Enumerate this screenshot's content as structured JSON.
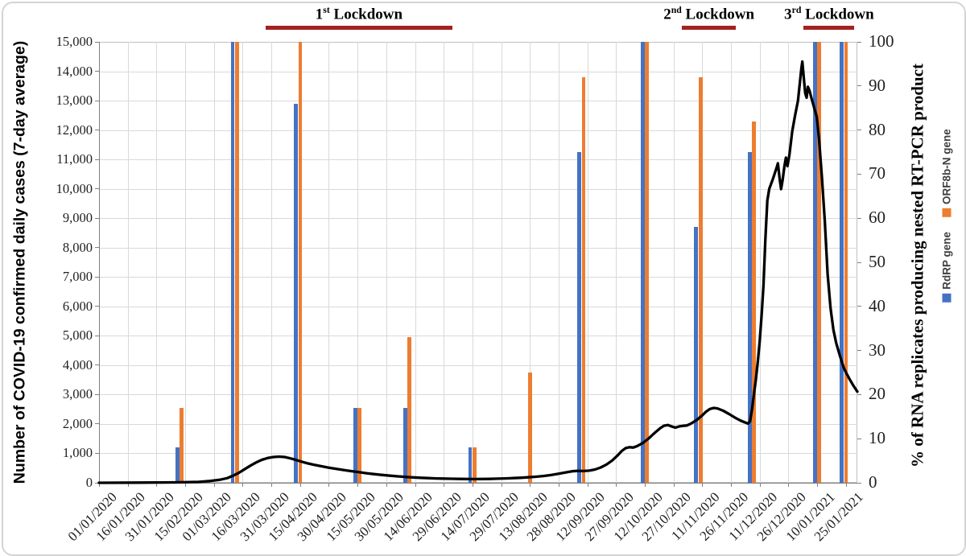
{
  "figure": {
    "left_axis": {
      "title": "Number of COVID-19 confirmed daily cases (7-day average)",
      "min": 0,
      "max": 15000,
      "step": 1000,
      "tick_labels": [
        "0",
        "1,000",
        "2,000",
        "3,000",
        "4,000",
        "5,000",
        "6,000",
        "7,000",
        "8,000",
        "9,000",
        "10,000",
        "11,000",
        "12,000",
        "13,000",
        "14,000",
        "15,000"
      ]
    },
    "right_axis": {
      "title": "% of RNA replicates producing nested RT-PCR product",
      "min": 0,
      "max": 100,
      "step": 10,
      "tick_labels": [
        "0",
        "10",
        "20",
        "30",
        "40",
        "50",
        "60",
        "70",
        "80",
        "90",
        "100"
      ]
    },
    "x_axis": {
      "labels": [
        "01/01/2020",
        "16/01/2020",
        "31/01/2020",
        "15/02/2020",
        "01/03/2020",
        "16/03/2020",
        "31/03/2020",
        "15/04/2020",
        "30/04/2020",
        "15/05/2020",
        "30/05/2020",
        "14/06/2020",
        "29/06/2020",
        "14/07/2020",
        "29/07/2020",
        "13/08/2020",
        "28/08/2020",
        "12/09/2020",
        "27/09/2020",
        "12/10/2020",
        "27/10/2020",
        "11/11/2020",
        "26/11/2020",
        "11/12/2020",
        "26/12/2020",
        "10/01/2021",
        "25/01/2021"
      ],
      "label_interval_days": 15,
      "total_days_shown": 396
    },
    "legend": {
      "items": [
        {
          "label": "RdRP gene",
          "color": "#4472C4"
        },
        {
          "label": "ORF8b-N gene",
          "color": "#ED7D31"
        }
      ]
    },
    "lockdowns": [
      {
        "ordinal": "1",
        "suffix": "st",
        "word": "Lockdown",
        "day_start": 87,
        "day_end": 184.5,
        "approx_period": "28/03/2020 - 03/07/2020"
      },
      {
        "ordinal": "2",
        "suffix": "nd",
        "word": "Lockdown",
        "day_start": 304.5,
        "day_end": 332.5,
        "approx_period": "31/10/2020 - 28/11/2020"
      },
      {
        "ordinal": "3",
        "suffix": "rd",
        "word": "Lockdown",
        "day_start": 368,
        "day_end": 394.5,
        "approx_period": "03/01/2021 - end of chart"
      }
    ],
    "colors": {
      "rdrp_blue": "#4472C4",
      "orf8b_orange": "#ED7D31",
      "case_line_black": "#000000",
      "lockdown_red": "#A52121",
      "grid": "#D9D9D9",
      "plot_border": "#BFBFBF",
      "axis": "#808080"
    }
  },
  "chart_data": {
    "type": "combo (clustered bars + line, dual y-axes)",
    "title": "",
    "xlabel": "",
    "x_axis_labels": [
      "01/01/2020",
      "16/01/2020",
      "31/01/2020",
      "15/02/2020",
      "01/03/2020",
      "16/03/2020",
      "31/03/2020",
      "15/04/2020",
      "30/04/2020",
      "15/05/2020",
      "30/05/2020",
      "14/06/2020",
      "29/06/2020",
      "14/07/2020",
      "29/07/2020",
      "13/08/2020",
      "28/08/2020",
      "12/09/2020",
      "27/09/2020",
      "12/10/2020",
      "27/10/2020",
      "11/11/2020",
      "26/11/2020",
      "11/12/2020",
      "26/12/2020",
      "10/01/2021",
      "25/01/2021"
    ],
    "left_axis": {
      "label": "Number of COVID-19 confirmed daily cases (7-day average)",
      "range": [
        0,
        15000
      ]
    },
    "right_axis": {
      "label": "% of RNA replicates producing nested RT-PCR product",
      "range": [
        0,
        100
      ]
    },
    "grid": "on",
    "legend_position": "right, rotated vertical",
    "bar_samples": {
      "note": "day = days after 01/01/2020, read from bar positions; values are % on right axis",
      "days": [
        42,
        71,
        104,
        135,
        161,
        195,
        224,
        252,
        285,
        313,
        341,
        375,
        389
      ],
      "dates_approx": [
        "12/02/2020",
        "12/03/2020",
        "14/04/2020",
        "15/05/2020",
        "10/06/2020",
        "14/07/2020",
        "12/08/2020",
        "09/09/2020",
        "12/10/2020",
        "09/11/2020",
        "07/12/2020",
        "10/01/2021",
        "24/01/2021"
      ],
      "series": [
        {
          "name": "RdRP gene",
          "values": [
            8,
            100,
            86,
            17,
            17,
            8,
            0,
            75,
            100,
            58,
            75,
            100,
            100
          ]
        },
        {
          "name": "ORF8b-N gene",
          "values": [
            17,
            100,
            100,
            17,
            33,
            8,
            25,
            92,
            100,
            92,
            82,
            100,
            100
          ]
        }
      ]
    },
    "case_line": {
      "name": "COVID-19 confirmed daily cases (7-day average)",
      "axis": "left",
      "points_day_cases": [
        [
          0,
          0
        ],
        [
          20,
          5
        ],
        [
          40,
          15
        ],
        [
          52,
          30
        ],
        [
          58,
          60
        ],
        [
          63,
          100
        ],
        [
          67,
          160
        ],
        [
          70,
          240
        ],
        [
          73,
          340
        ],
        [
          76,
          460
        ],
        [
          79,
          580
        ],
        [
          82,
          690
        ],
        [
          85,
          780
        ],
        [
          88,
          840
        ],
        [
          91,
          875
        ],
        [
          94,
          890
        ],
        [
          97,
          875
        ],
        [
          100,
          830
        ],
        [
          103,
          775
        ],
        [
          106,
          715
        ],
        [
          109,
          660
        ],
        [
          112,
          615
        ],
        [
          116,
          565
        ],
        [
          120,
          515
        ],
        [
          124,
          472
        ],
        [
          128,
          432
        ],
        [
          132,
          394
        ],
        [
          136,
          358
        ],
        [
          140,
          324
        ],
        [
          144,
          293
        ],
        [
          148,
          265
        ],
        [
          152,
          240
        ],
        [
          156,
          218
        ],
        [
          160,
          199
        ],
        [
          164,
          183
        ],
        [
          168,
          169
        ],
        [
          172,
          158
        ],
        [
          176,
          149
        ],
        [
          180,
          142
        ],
        [
          184,
          136
        ],
        [
          188,
          131
        ],
        [
          192,
          128
        ],
        [
          196,
          126
        ],
        [
          200,
          128
        ],
        [
          204,
          132
        ],
        [
          208,
          139
        ],
        [
          212,
          148
        ],
        [
          216,
          159
        ],
        [
          220,
          171
        ],
        [
          224,
          187
        ],
        [
          228,
          206
        ],
        [
          232,
          231
        ],
        [
          236,
          264
        ],
        [
          240,
          306
        ],
        [
          244,
          357
        ],
        [
          247,
          392
        ],
        [
          250,
          406
        ],
        [
          253,
          399
        ],
        [
          256,
          414
        ],
        [
          259,
          453
        ],
        [
          262,
          520
        ],
        [
          265,
          620
        ],
        [
          268,
          758
        ],
        [
          271,
          945
        ],
        [
          273,
          1085
        ],
        [
          275,
          1180
        ],
        [
          277,
          1210
        ],
        [
          279,
          1198
        ],
        [
          281,
          1248
        ],
        [
          284,
          1355
        ],
        [
          287,
          1505
        ],
        [
          290,
          1685
        ],
        [
          293,
          1855
        ],
        [
          295,
          1940
        ],
        [
          297,
          1965
        ],
        [
          299,
          1915
        ],
        [
          301,
          1878
        ],
        [
          303,
          1920
        ],
        [
          305,
          1938
        ],
        [
          307,
          1950
        ],
        [
          309,
          2010
        ],
        [
          312,
          2130
        ],
        [
          315,
          2290
        ],
        [
          317,
          2420
        ],
        [
          319,
          2510
        ],
        [
          321,
          2545
        ],
        [
          323,
          2530
        ],
        [
          326,
          2450
        ],
        [
          329,
          2340
        ],
        [
          332,
          2220
        ],
        [
          335,
          2115
        ],
        [
          337,
          2060
        ],
        [
          339,
          2015
        ],
        [
          340,
          2100
        ],
        [
          341,
          2500
        ],
        [
          342,
          3000
        ],
        [
          343,
          3500
        ],
        [
          344,
          4100
        ],
        [
          345,
          4800
        ],
        [
          346,
          5700
        ],
        [
          347,
          6700
        ],
        [
          348,
          8300
        ],
        [
          349,
          9600
        ],
        [
          350,
          10000
        ],
        [
          352,
          10350
        ],
        [
          354,
          10750
        ],
        [
          354.5,
          10870
        ],
        [
          355.5,
          10300
        ],
        [
          356.2,
          9990
        ],
        [
          357,
          10300
        ],
        [
          358,
          10800
        ],
        [
          358.7,
          11060
        ],
        [
          359.5,
          10770
        ],
        [
          360.5,
          11150
        ],
        [
          362,
          11950
        ],
        [
          363.5,
          12500
        ],
        [
          365,
          13000
        ],
        [
          366,
          13600
        ],
        [
          366.8,
          14100
        ],
        [
          367.3,
          14330
        ],
        [
          368,
          13800
        ],
        [
          368.8,
          13250
        ],
        [
          369.5,
          13100
        ],
        [
          370.2,
          13470
        ],
        [
          371,
          13350
        ],
        [
          372,
          13100
        ],
        [
          373.5,
          12750
        ],
        [
          374.8,
          12450
        ],
        [
          376,
          11700
        ],
        [
          377.5,
          10400
        ],
        [
          379,
          8900
        ],
        [
          380.5,
          7100
        ],
        [
          382,
          5950
        ],
        [
          383.5,
          5200
        ],
        [
          385,
          4750
        ],
        [
          387,
          4300
        ],
        [
          389,
          3900
        ],
        [
          390.5,
          3700
        ],
        [
          392,
          3520
        ],
        [
          394,
          3300
        ],
        [
          396,
          3100
        ]
      ]
    },
    "annotations": [
      {
        "text": "1st Lockdown",
        "span_days": [
          87,
          184.5
        ]
      },
      {
        "text": "2nd Lockdown",
        "span_days": [
          304.5,
          332.5
        ]
      },
      {
        "text": "3rd Lockdown",
        "span_days": [
          368,
          394.5
        ]
      }
    ]
  }
}
